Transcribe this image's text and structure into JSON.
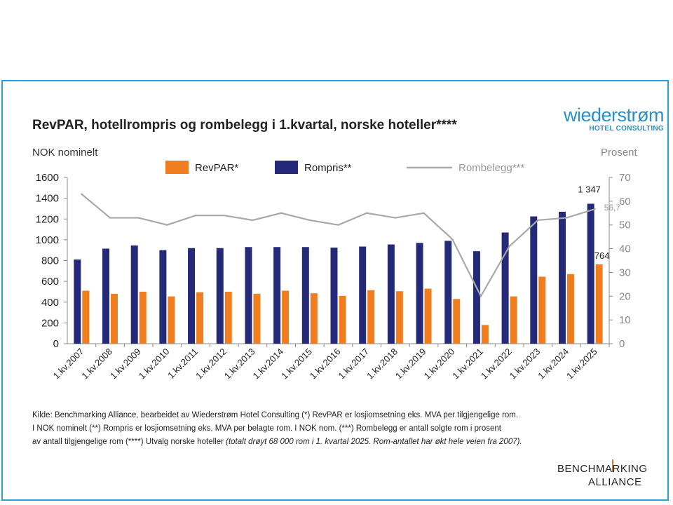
{
  "title": "RevPAR, hotellrompris og rombelegg i 1.kvartal, norske hoteller****",
  "logo": {
    "main": "wiederstrøm",
    "sub": "HOTEL CONSULTING"
  },
  "unit_left": "NOK nominelt",
  "unit_right": "Prosent",
  "colors": {
    "revpar": "#f07d1f",
    "rompris": "#252a78",
    "rombelegg": "#a8a8a8",
    "frame": "#2a9fd8"
  },
  "chart_data": {
    "type": "bar",
    "title": "RevPAR, hotellrompris og rombelegg i 1.kvartal, norske hoteller****",
    "categories": [
      "1.kv.2007",
      "1.kv.2008",
      "1.kv.2009",
      "1.kv.2010",
      "1.kv.2011",
      "1.kv.2012",
      "1.kv.2013",
      "1.kv.2014",
      "1.kv.2015",
      "1.kv.2016",
      "1.kv.2017",
      "1.kv.2018",
      "1.kv.2019",
      "1.kv.2020",
      "1.kv.2021",
      "1.kv.2022",
      "1.kv.2023",
      "1.kv.2024",
      "1.kv.2025"
    ],
    "series": [
      {
        "name": "RevPAR*",
        "type": "bar",
        "axis": "left",
        "values": [
          510,
          480,
          500,
          455,
          495,
          500,
          480,
          510,
          485,
          460,
          515,
          505,
          530,
          430,
          180,
          455,
          645,
          670,
          764
        ]
      },
      {
        "name": "Rompris**",
        "type": "bar",
        "axis": "left",
        "values": [
          810,
          915,
          945,
          900,
          920,
          920,
          930,
          930,
          930,
          925,
          935,
          955,
          970,
          990,
          890,
          1070,
          1225,
          1270,
          1347
        ]
      },
      {
        "name": "Rombelegg***",
        "type": "line",
        "axis": "right",
        "values": [
          63,
          53,
          53,
          50,
          54,
          54,
          52,
          55,
          52,
          50,
          55,
          53,
          55,
          44,
          20,
          41,
          52,
          53,
          56.7
        ]
      }
    ],
    "ylim_left": [
      0,
      1600
    ],
    "yticks_left": [
      0,
      200,
      400,
      600,
      800,
      1000,
      1200,
      1400,
      1600
    ],
    "ylim_right": [
      0,
      70
    ],
    "yticks_right": [
      0,
      10,
      20,
      30,
      40,
      50,
      60,
      70
    ],
    "ylabel_left": "NOK nominelt",
    "ylabel_right": "Prosent",
    "annotations": [
      {
        "series": "Rompris**",
        "index": 18,
        "text": "1 347"
      },
      {
        "series": "RevPAR*",
        "index": 18,
        "text": "764"
      },
      {
        "series": "Rombelegg***",
        "index": 18,
        "text": "56,7"
      }
    ],
    "legend": "top"
  },
  "source": {
    "line1": "Kilde: Benchmarking  Alliance, bearbeidet av Wiederstrøm Hotel Consulting (*) RevPAR er losjiomsetning eks. MVA per tilgjengelige rom.",
    "line2": "I NOK nominelt (**)  Rompris er losjiomsetning  eks. MVA  per belagte rom. I NOK nom.  (***) Rombelegg er antall solgte rom  i  prosent",
    "line3": "av  antall  tilgjengelige  rom  (****) Utvalg  norske hoteller ",
    "line3_italic": "(totalt  drøyt 68 000  rom i 1. kvartal 2025. Rom-antallet har økt hele veien fra 2007)."
  },
  "footer_logo": {
    "line1": "BENCHMARKING",
    "line2": "ALLIANCE"
  }
}
